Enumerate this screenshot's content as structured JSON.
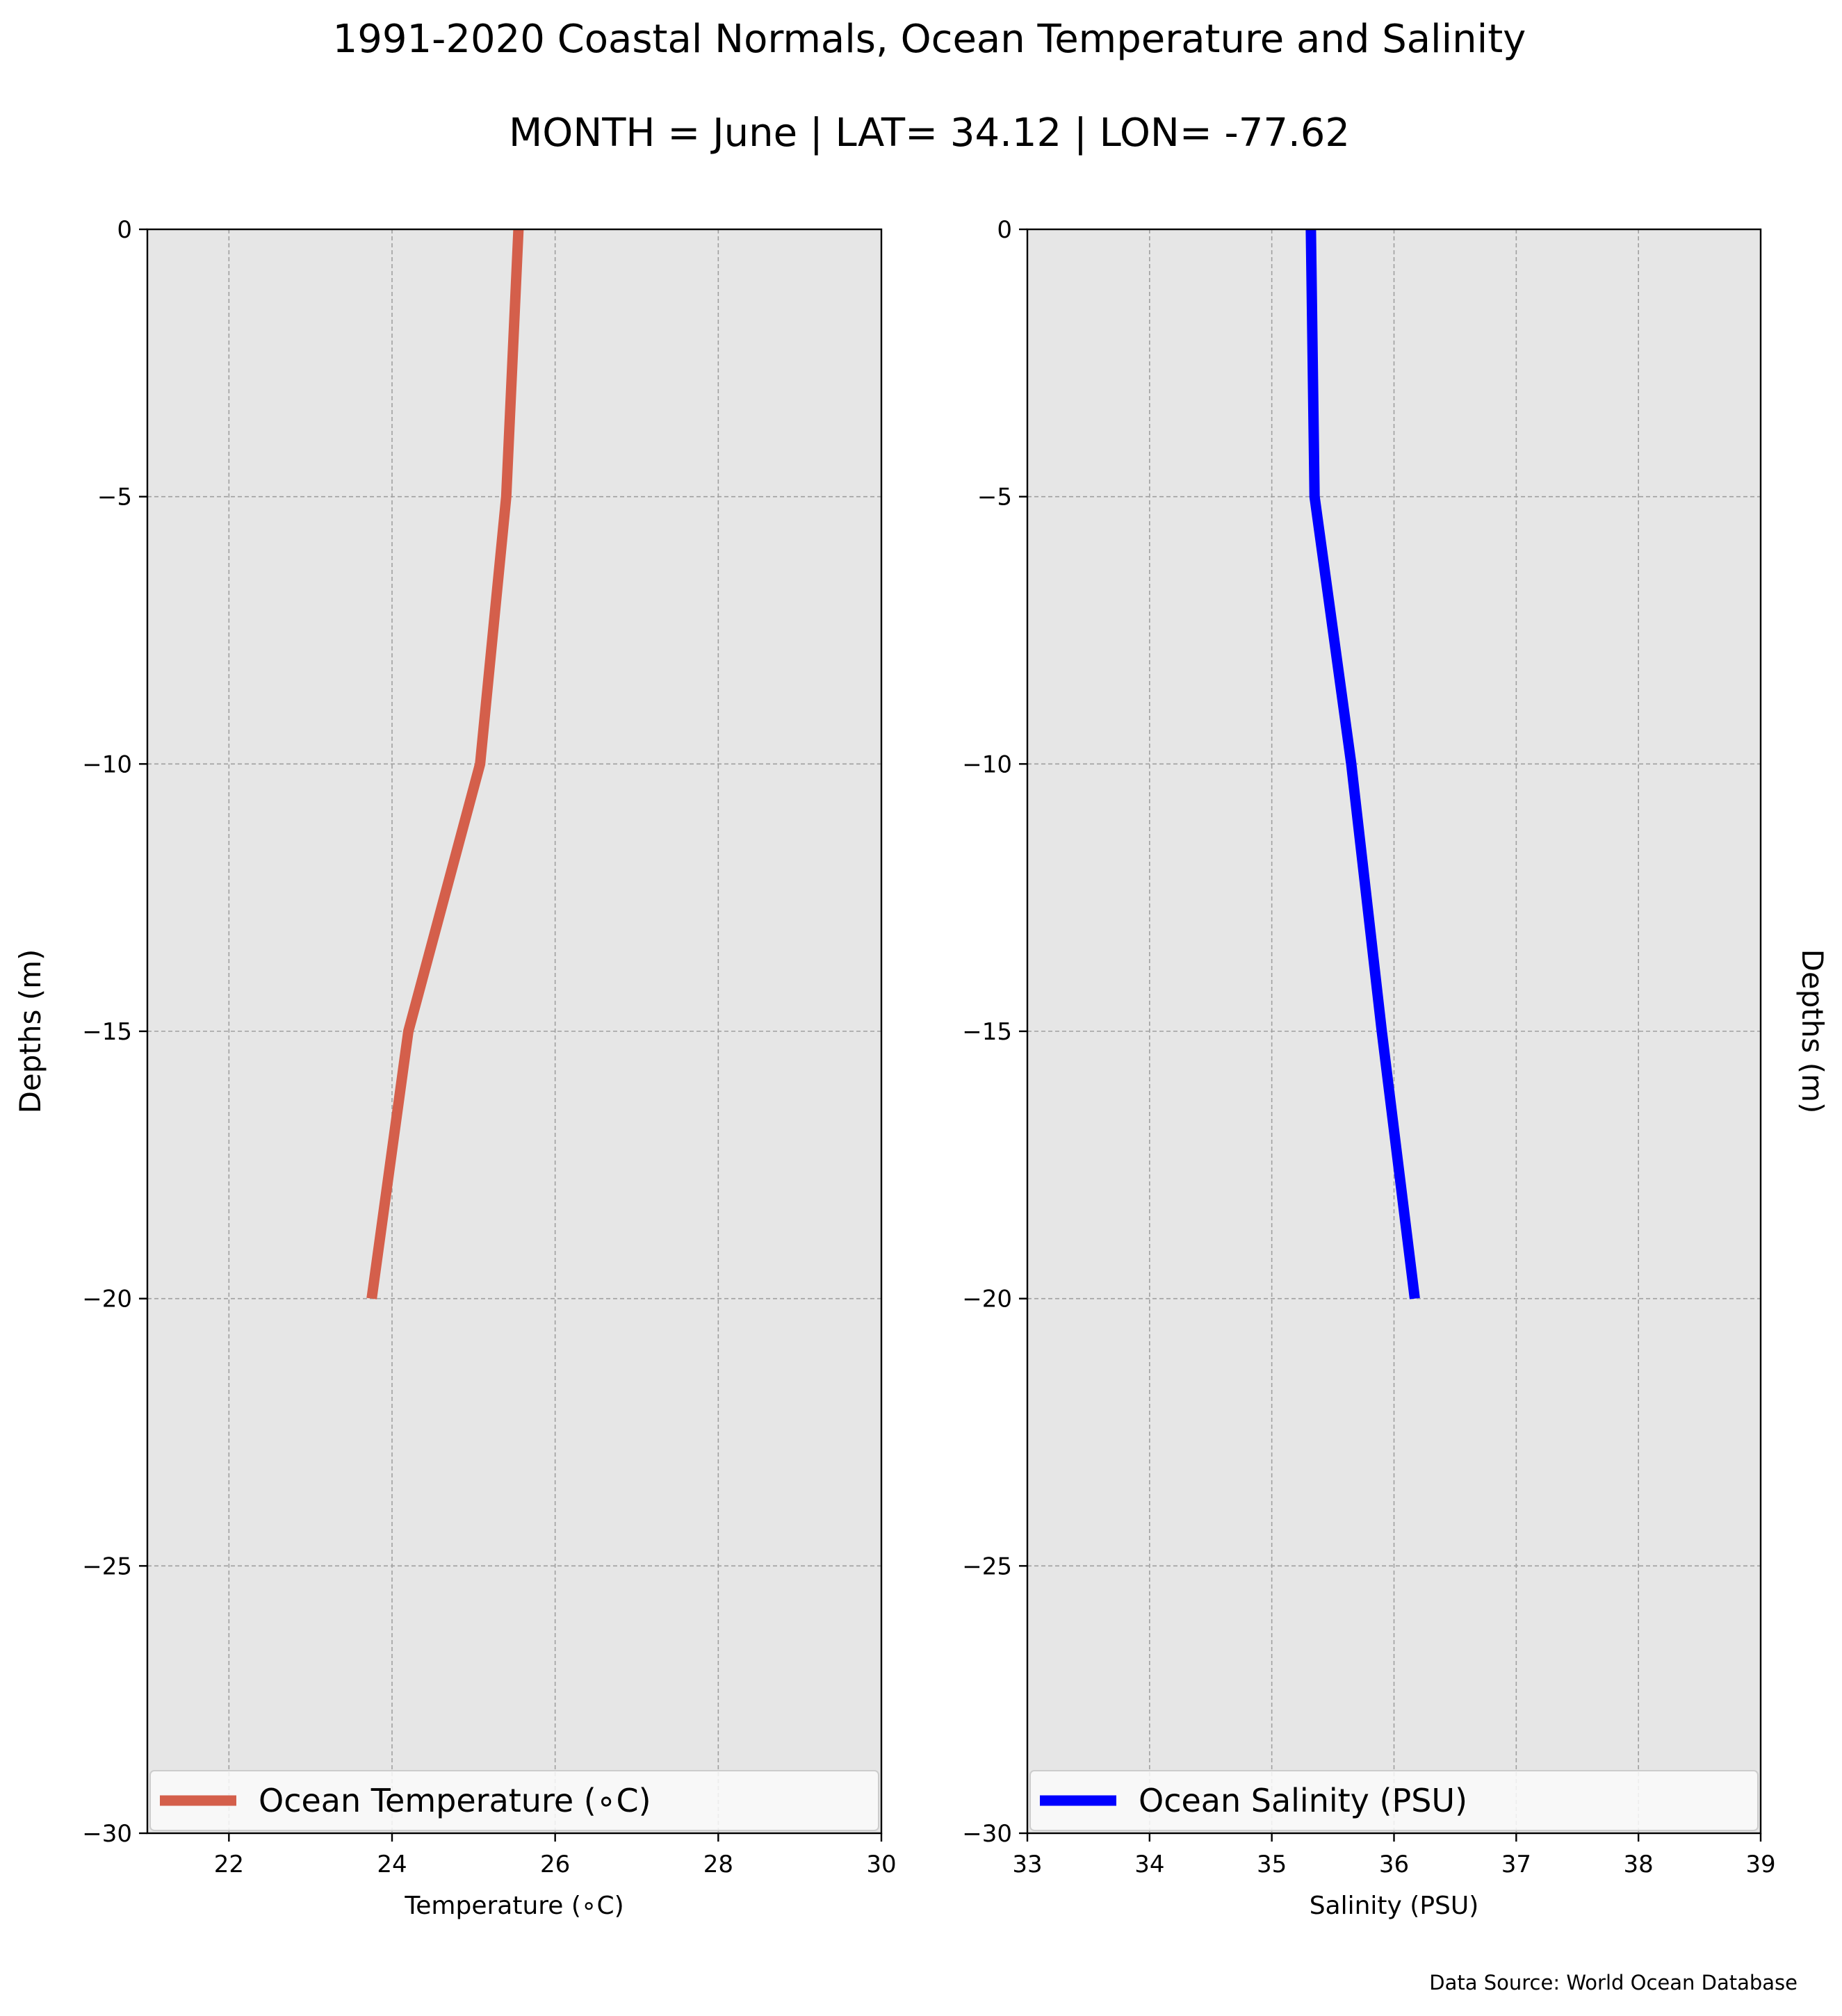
{
  "chart_data": {
    "title": "1991-2020 Coastal Normals, Ocean Temperature and Salinity",
    "subtitle": "MONTH = June | LAT= 34.12 | LON= -77.62",
    "source_note": "Data Source: World Ocean Database",
    "charts": [
      {
        "type": "line",
        "xlabel": "Temperature ($^\\circ$C)",
        "xlabel_display": "Temperature (∘C)",
        "ylabel": "Depths (m)",
        "xlim": [
          21,
          30
        ],
        "ylim": [
          -30,
          0
        ],
        "xticks": [
          22,
          24,
          26,
          28,
          30
        ],
        "yticks": [
          0,
          -5,
          -10,
          -15,
          -20,
          -25,
          -30
        ],
        "ytick_labels": [
          "0",
          "−5",
          "−10",
          "−15",
          "−20",
          "−25",
          "−30"
        ],
        "grid": true,
        "legend_position": "bottom",
        "series": [
          {
            "name": "Ocean Temperature (∘C)",
            "color": "#d45f4b",
            "x": [
              25.55,
              25.4,
              25.08,
              24.2,
              23.75
            ],
            "y": [
              0,
              -5,
              -10,
              -15,
              -20
            ]
          }
        ]
      },
      {
        "type": "line",
        "xlabel": "Salinity (PSU)",
        "ylabel": "Depths (m)",
        "xlim": [
          33,
          39
        ],
        "ylim": [
          -30,
          0
        ],
        "xticks": [
          33,
          34,
          35,
          36,
          37,
          38,
          39
        ],
        "yticks": [
          0,
          -5,
          -10,
          -15,
          -20,
          -25,
          -30
        ],
        "ytick_labels": [
          "0",
          "−5",
          "−10",
          "−15",
          "−20",
          "−25",
          "−30"
        ],
        "grid": true,
        "legend_position": "bottom",
        "series": [
          {
            "name": "Ocean Salinity (PSU)",
            "color": "#0000ff",
            "x": [
              35.32,
              35.35,
              35.65,
              35.9,
              36.17
            ],
            "y": [
              0,
              -5,
              -10,
              -15,
              -20
            ]
          }
        ]
      }
    ],
    "colors": {
      "plot_background": "#e6e6e6",
      "grid": "#a0a0a0",
      "legend_background": "#fafafa"
    }
  }
}
